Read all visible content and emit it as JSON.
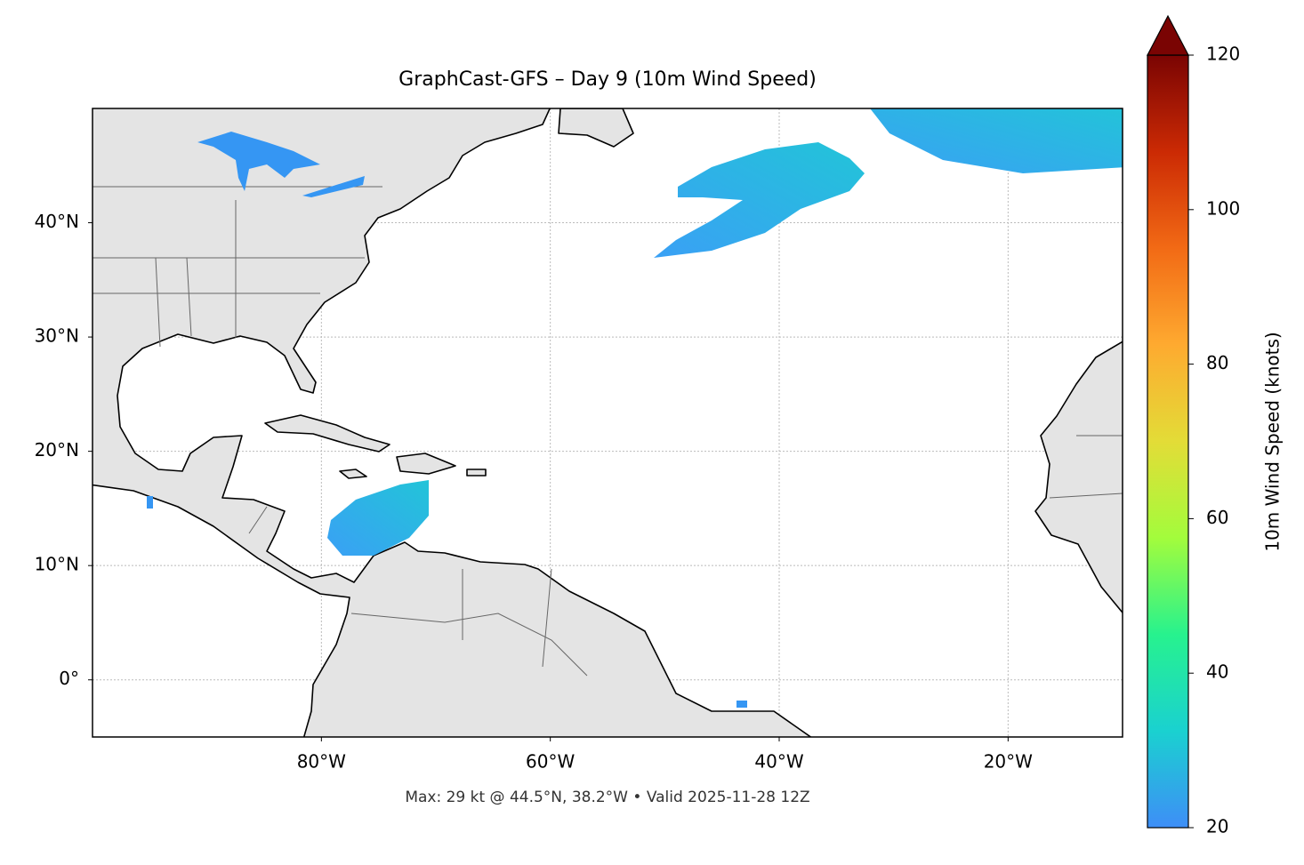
{
  "chart_data": {
    "type": "map",
    "title": "GraphCast-GFS – Day 9 (10m Wind Speed)",
    "note": "Max: 29 kt @ 44.5°N, 38.2°W • Valid 2025-11-28 12Z",
    "xlim": [
      -100,
      -10
    ],
    "ylim": [
      -5,
      50
    ],
    "xticks": [
      {
        "value": -80,
        "label": "80°W"
      },
      {
        "value": -60,
        "label": "60°W"
      },
      {
        "value": -40,
        "label": "40°W"
      },
      {
        "value": -20,
        "label": "20°W"
      }
    ],
    "yticks": [
      {
        "value": 0,
        "label": "0°"
      },
      {
        "value": 10,
        "label": "10°N"
      },
      {
        "value": 20,
        "label": "20°N"
      },
      {
        "value": 30,
        "label": "30°N"
      },
      {
        "value": 40,
        "label": "40°N"
      }
    ],
    "grid": true,
    "colorbar": {
      "label": "10m Wind Speed (knots)",
      "lim": [
        20,
        120
      ],
      "ticks": [
        20,
        40,
        60,
        80,
        100,
        120
      ],
      "extend": "max",
      "colormap": [
        "#3e8ef7",
        "#1ad1d0",
        "#27f28e",
        "#a3fc3c",
        "#e3dc37",
        "#feaa30",
        "#f26a15",
        "#cb2a04",
        "#7a0403"
      ]
    }
  }
}
